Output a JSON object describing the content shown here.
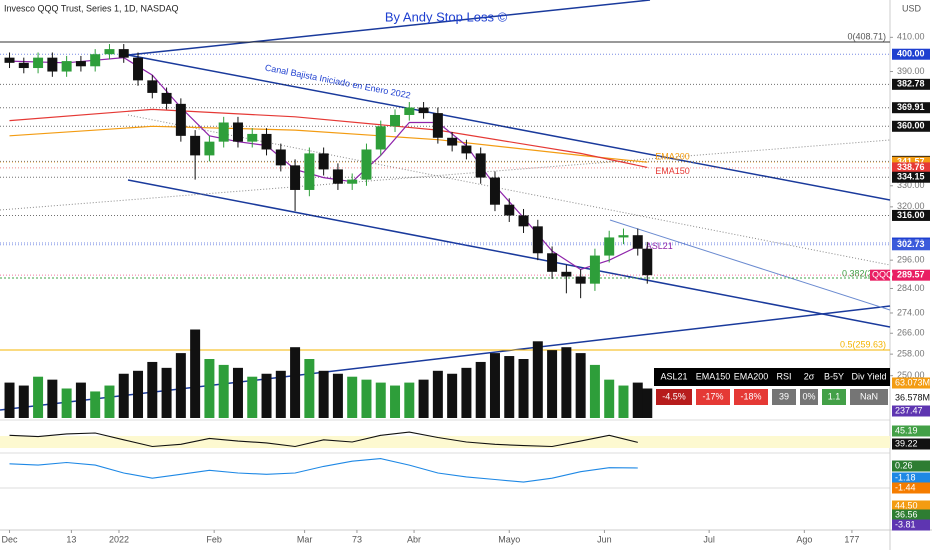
{
  "chart_data": {
    "type": "candlestick",
    "title": "Invesco QQQ Trust, Series 1, 1D, NASDAQ",
    "subtitle": "By Andy Stop Loss ©",
    "currency": "USD",
    "channel_label": "Canal Bajista Iniciado en Enero 2022",
    "fib_labels": [
      "0(408.71)",
      "0.382(2",
      "0.5(259.63)"
    ],
    "x": [
      0,
      3,
      6,
      9,
      12,
      15,
      18,
      21,
      24,
      27,
      30,
      33,
      36,
      39,
      42,
      45,
      48,
      51,
      54,
      57,
      60,
      63,
      66,
      69,
      72,
      75,
      78,
      81,
      84,
      87,
      90,
      93,
      96,
      99,
      102,
      105,
      108,
      111,
      114,
      117,
      120,
      123,
      126,
      129,
      132,
      134
    ],
    "open": [
      398,
      395,
      392,
      398,
      390,
      396,
      393,
      400,
      403,
      398,
      385,
      378,
      372,
      355,
      345,
      352,
      362,
      352,
      356,
      348,
      340,
      328,
      346,
      338,
      331,
      333,
      348,
      360,
      366,
      370,
      367,
      354,
      350,
      346,
      334,
      321,
      316,
      311,
      299,
      291,
      289,
      286,
      298,
      306,
      307,
      301
    ],
    "high": [
      401,
      398,
      401,
      401,
      399,
      399,
      403,
      406,
      406,
      401,
      388,
      381,
      375,
      358,
      355,
      365,
      365,
      359,
      359,
      351,
      343,
      349,
      349,
      341,
      336,
      351,
      363,
      369,
      373,
      373,
      370,
      357,
      353,
      349,
      337,
      324,
      319,
      314,
      302,
      294,
      292,
      301,
      309,
      310,
      310,
      304
    ],
    "low": [
      392,
      389,
      389,
      387,
      387,
      390,
      390,
      397,
      395,
      382,
      375,
      369,
      352,
      333,
      342,
      349,
      349,
      349,
      345,
      337,
      318,
      325,
      335,
      328,
      328,
      330,
      345,
      357,
      363,
      364,
      351,
      347,
      343,
      331,
      318,
      313,
      308,
      296,
      288,
      282,
      280,
      283,
      295,
      303,
      298,
      286
    ],
    "close": [
      395,
      392,
      398,
      390,
      396,
      393,
      400,
      403,
      398,
      385,
      378,
      372,
      355,
      345,
      352,
      362,
      352,
      356,
      348,
      340,
      328,
      346,
      338,
      331,
      333,
      348,
      360,
      366,
      370,
      367,
      354,
      350,
      346,
      334,
      321,
      316,
      311,
      299,
      291,
      289,
      286,
      298,
      306,
      307,
      301,
      289.57
    ],
    "up_color": "#2e9e3a",
    "down_color": "#111111",
    "xlim": [
      -2,
      185
    ],
    "ylim": [
      235,
      433
    ],
    "log_scale": true,
    "xticks": [
      {
        "value": 0,
        "label": "Dec"
      },
      13,
      {
        "value": 23,
        "label": "2022"
      },
      {
        "value": 43,
        "label": "Feb"
      },
      {
        "value": 62,
        "label": "Mar"
      },
      73,
      {
        "value": 85,
        "label": "Abr"
      },
      {
        "value": 105,
        "label": "Mayo"
      },
      {
        "value": 125,
        "label": "Jun"
      },
      {
        "value": 147,
        "label": "Jul"
      },
      {
        "value": 167,
        "label": "Ago"
      },
      177
    ],
    "yticks": [
      {
        "value": 410,
        "label": "410.00"
      },
      {
        "value": 390,
        "label": "390.00"
      },
      {
        "value": 330,
        "label": "330.00"
      },
      {
        "value": 320,
        "label": "320.00"
      },
      {
        "value": 296,
        "label": "296.00"
      },
      {
        "value": 284,
        "label": "284.00"
      },
      {
        "value": 274,
        "label": "274.00"
      },
      {
        "value": 266,
        "label": "266.00"
      },
      {
        "value": 258,
        "label": "258.00"
      },
      {
        "value": 250,
        "label": "250.00"
      }
    ],
    "price_labels": [
      {
        "value": 400,
        "label": "400.00",
        "color": "#1e3fd0"
      },
      {
        "value": 382.78,
        "label": "382.78",
        "color": "#111111"
      },
      {
        "value": 369.91,
        "label": "369.91",
        "color": "#111111"
      },
      {
        "value": 360,
        "label": "360.00",
        "color": "#111111"
      },
      {
        "value": 342,
        "label": "342.00",
        "color": "#111111"
      },
      {
        "value": 341.57,
        "label": "341.57",
        "color": "#f39c12"
      },
      {
        "value": 338.76,
        "label": "338.76",
        "color": "#e53935"
      },
      {
        "value": 334.15,
        "label": "334.15",
        "color": "#111111"
      },
      {
        "value": 316,
        "label": "316.00",
        "color": "#111111"
      },
      {
        "value": 303.5,
        "label": "303.50",
        "color": "#1e3fd0"
      },
      {
        "value": 302.73,
        "label": "302.73",
        "color": "#3b5bdb"
      },
      {
        "value": 289.57,
        "label": "289.57",
        "color": "#e91e63"
      }
    ],
    "symbol": "QQQ",
    "lines": [
      {
        "name": "EMA200",
        "color": "#f39c12",
        "x": [
          0,
          30,
          60,
          90,
          120,
          134
        ],
        "values": [
          355,
          360,
          358,
          353,
          345,
          341.6
        ]
      },
      {
        "name": "EMA150",
        "color": "#e53935",
        "x": [
          0,
          30,
          60,
          90,
          120,
          134
        ],
        "values": [
          363,
          369,
          365,
          358,
          346,
          339
        ]
      },
      {
        "name": "ASL21",
        "color": "#8e24aa",
        "x": [
          0,
          12,
          24,
          30,
          36,
          42,
          48,
          54,
          60,
          66,
          72,
          78,
          84,
          90,
          96,
          102,
          108,
          114,
          120,
          126,
          132
        ],
        "values": [
          396,
          395,
          398,
          388,
          370,
          355,
          352,
          350,
          338,
          334,
          332,
          345,
          362,
          362,
          350,
          330,
          315,
          300,
          292,
          296,
          302
        ]
      }
    ],
    "volume": {
      "ylim": [
        0,
        200
      ],
      "values": [
        60,
        55,
        70,
        65,
        50,
        60,
        45,
        55,
        75,
        80,
        95,
        85,
        110,
        150,
        100,
        90,
        85,
        70,
        75,
        80,
        120,
        100,
        80,
        75,
        70,
        65,
        60,
        55,
        60,
        65,
        80,
        75,
        85,
        95,
        110,
        105,
        100,
        130,
        115,
        120,
        110,
        90,
        65,
        55,
        60,
        50
      ]
    },
    "rsi": {
      "ylim": [
        20,
        80
      ],
      "x": [
        0,
        6,
        12,
        18,
        24,
        30,
        36,
        42,
        48,
        54,
        60,
        66,
        72,
        78,
        84,
        90,
        96,
        102,
        108,
        114,
        120,
        126,
        132
      ],
      "values": [
        55,
        52,
        58,
        60,
        45,
        30,
        35,
        48,
        42,
        38,
        30,
        45,
        40,
        55,
        62,
        50,
        40,
        35,
        32,
        30,
        42,
        55,
        39.22
      ]
    },
    "macd": {
      "ylim": [
        -15,
        8
      ],
      "x": [
        0,
        6,
        12,
        18,
        24,
        30,
        36,
        42,
        48,
        54,
        60,
        66,
        72,
        78,
        84,
        90,
        96,
        102,
        108,
        114,
        120,
        126,
        132
      ],
      "values": [
        2,
        1,
        3,
        1,
        -5,
        -9,
        -6,
        -3,
        -5,
        -6,
        -5,
        0,
        4,
        6,
        1,
        -5,
        -8,
        -10,
        -12,
        -9,
        -4,
        -1,
        -1.18
      ]
    },
    "indicator_labels": [
      {
        "label": "63.073M",
        "color": "#f39c12"
      },
      {
        "label": "36.578M",
        "color": "#111111"
      },
      {
        "label": "237.47",
        "color": "#5e35b1"
      },
      {
        "label": "45.19",
        "color": "#43a047"
      },
      {
        "label": "39.22",
        "color": "#111111"
      },
      {
        "label": "0.26",
        "color": "#2e7d32"
      },
      {
        "label": "-1.18",
        "color": "#1e88e5"
      },
      {
        "label": "-1.44",
        "color": "#f57c00"
      },
      {
        "label": "44.50",
        "color": "#f39c12"
      },
      {
        "label": "36.56",
        "color": "#2e7d32"
      },
      {
        "label": "-3.81",
        "color": "#5e35b1"
      }
    ],
    "table": {
      "headers": [
        "ASL21",
        "EMA150",
        "EMA200",
        "RSI",
        "2σ",
        "B-5Y",
        "Div Yield"
      ],
      "cells": [
        {
          "text": "-4.5%",
          "color": "#b71c1c"
        },
        {
          "text": "-17%",
          "color": "#e53935"
        },
        {
          "text": "-18%",
          "color": "#e53935"
        },
        {
          "text": "39",
          "color": "#757575"
        },
        {
          "text": "0%",
          "color": "#757575"
        },
        {
          "text": "1.1",
          "color": "#43a047"
        },
        {
          "text": "NaN",
          "color": "#757575"
        }
      ]
    }
  }
}
